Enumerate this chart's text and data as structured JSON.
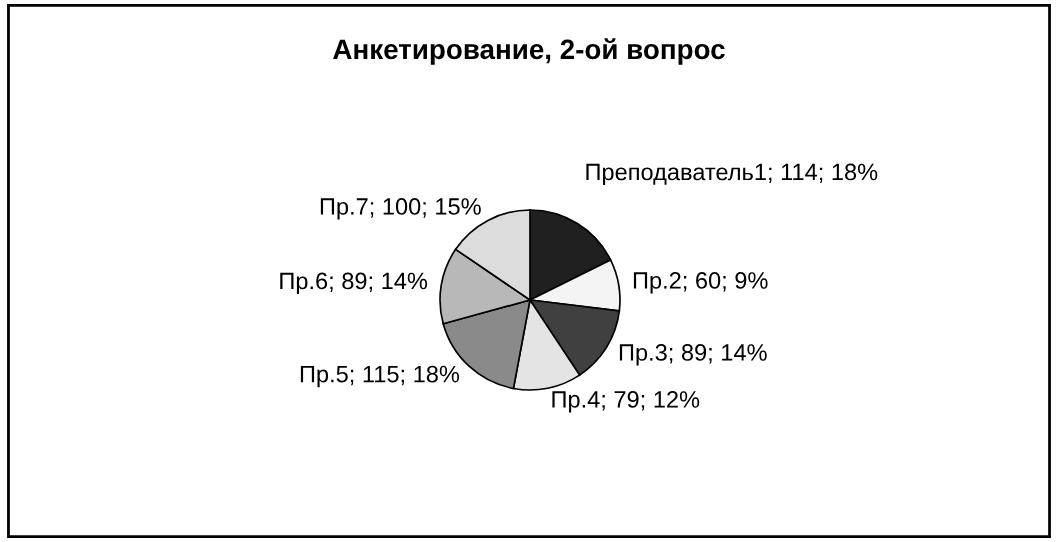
{
  "chart_data": {
    "type": "pie",
    "title": "Анкетирование, 2-ой вопрос",
    "categories": [
      "Преподаватель1",
      "Пр.2",
      "Пр.3",
      "Пр.4",
      "Пр.5",
      "Пр.6",
      "Пр.7"
    ],
    "values": [
      114,
      60,
      89,
      79,
      115,
      89,
      100
    ],
    "value_labels": [
      "114; 18%",
      "60; 9%",
      "89; 14%",
      "79; 12%",
      "115; 18%",
      "89; 14%",
      "100; 15%"
    ],
    "colors": [
      "#202020",
      "#f4f4f4",
      "#404040",
      "#e4e4e4",
      "#8a8a8a",
      "#b8b8b8",
      "#dcdcdc"
    ],
    "legend": false
  }
}
